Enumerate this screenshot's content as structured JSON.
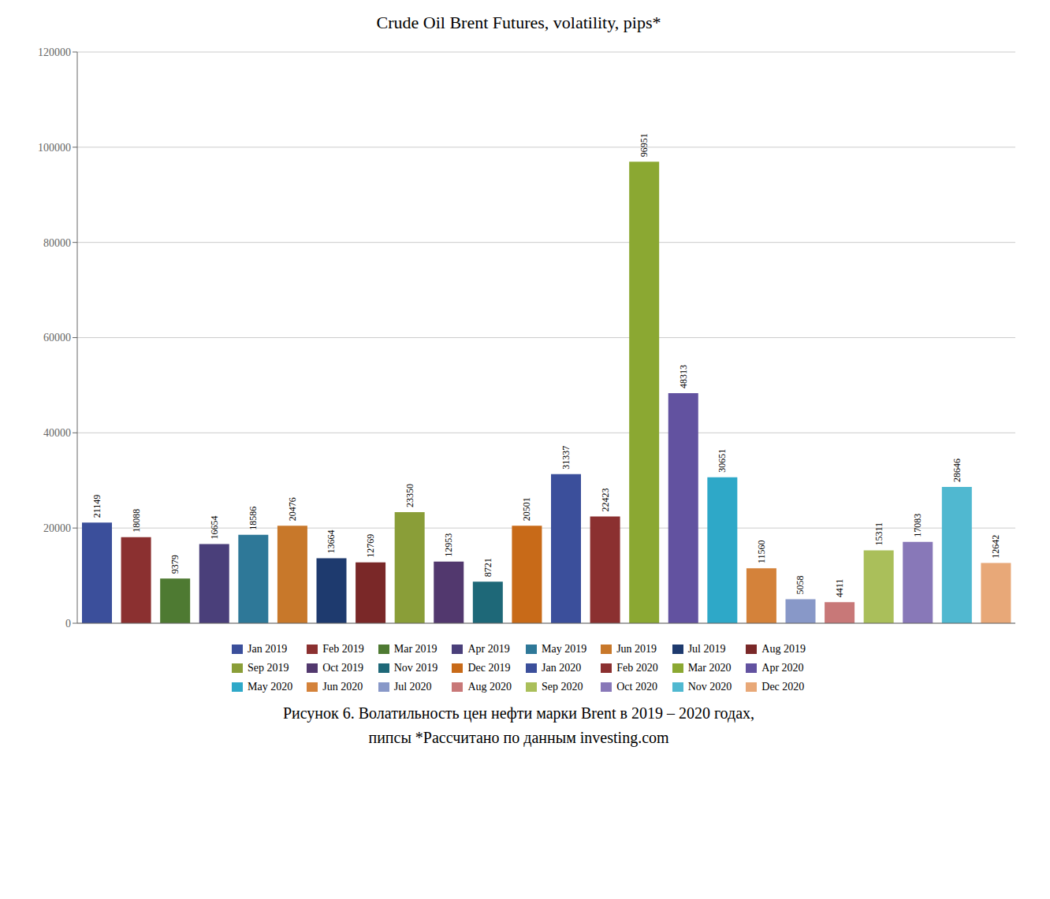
{
  "chart_data": {
    "type": "bar",
    "title": "Crude Oil Brent Futures, volatility, pips*",
    "annotations": [
      "Рисунок 6. Волатильность цен нефти марки Brent в 2019 – 2020 годах,",
      "пипсы *Рассчитано по данным investing.com"
    ],
    "categories": [
      "Jan 2019",
      "Feb 2019",
      "Mar 2019",
      "Apr 2019",
      "May 2019",
      "Jun 2019",
      "Jul 2019",
      "Aug 2019",
      "Sep 2019",
      "Oct 2019",
      "Nov 2019",
      "Dec 2019",
      "Jan 2020",
      "Feb 2020",
      "Mar 2020",
      "Apr 2020",
      "May 2020",
      "Jun 2020",
      "Jul 2020",
      "Aug 2020",
      "Sep 2020",
      "Oct 2020",
      "Nov 2020",
      "Dec 2020"
    ],
    "values": [
      21149,
      18088,
      9379,
      16654,
      18586,
      20476,
      13664,
      12769,
      23350,
      12953,
      8721,
      20501,
      31337,
      22423,
      96951,
      48313,
      30651,
      11560,
      5058,
      4411,
      15311,
      17083,
      28646,
      12642
    ],
    "colors": [
      "#3B4F9B",
      "#8B3030",
      "#4E7A32",
      "#4A3F7A",
      "#2E7898",
      "#C8782A",
      "#1E3A6E",
      "#7A2828",
      "#8A9E38",
      "#52386E",
      "#1E6878",
      "#C86A18",
      "#3B4F9B",
      "#8B3030",
      "#8BA832",
      "#6252A0",
      "#2EA8C8",
      "#D4823A",
      "#8898C8",
      "#C87878",
      "#AABF5A",
      "#8878B8",
      "#50B8D0",
      "#E8A878"
    ],
    "ylim": [
      0,
      120000
    ],
    "yticks": [
      0,
      20000,
      40000,
      60000,
      80000,
      100000,
      120000
    ],
    "grid": true,
    "data_labels": true,
    "tick_labels": "y",
    "legend": "bottom"
  }
}
